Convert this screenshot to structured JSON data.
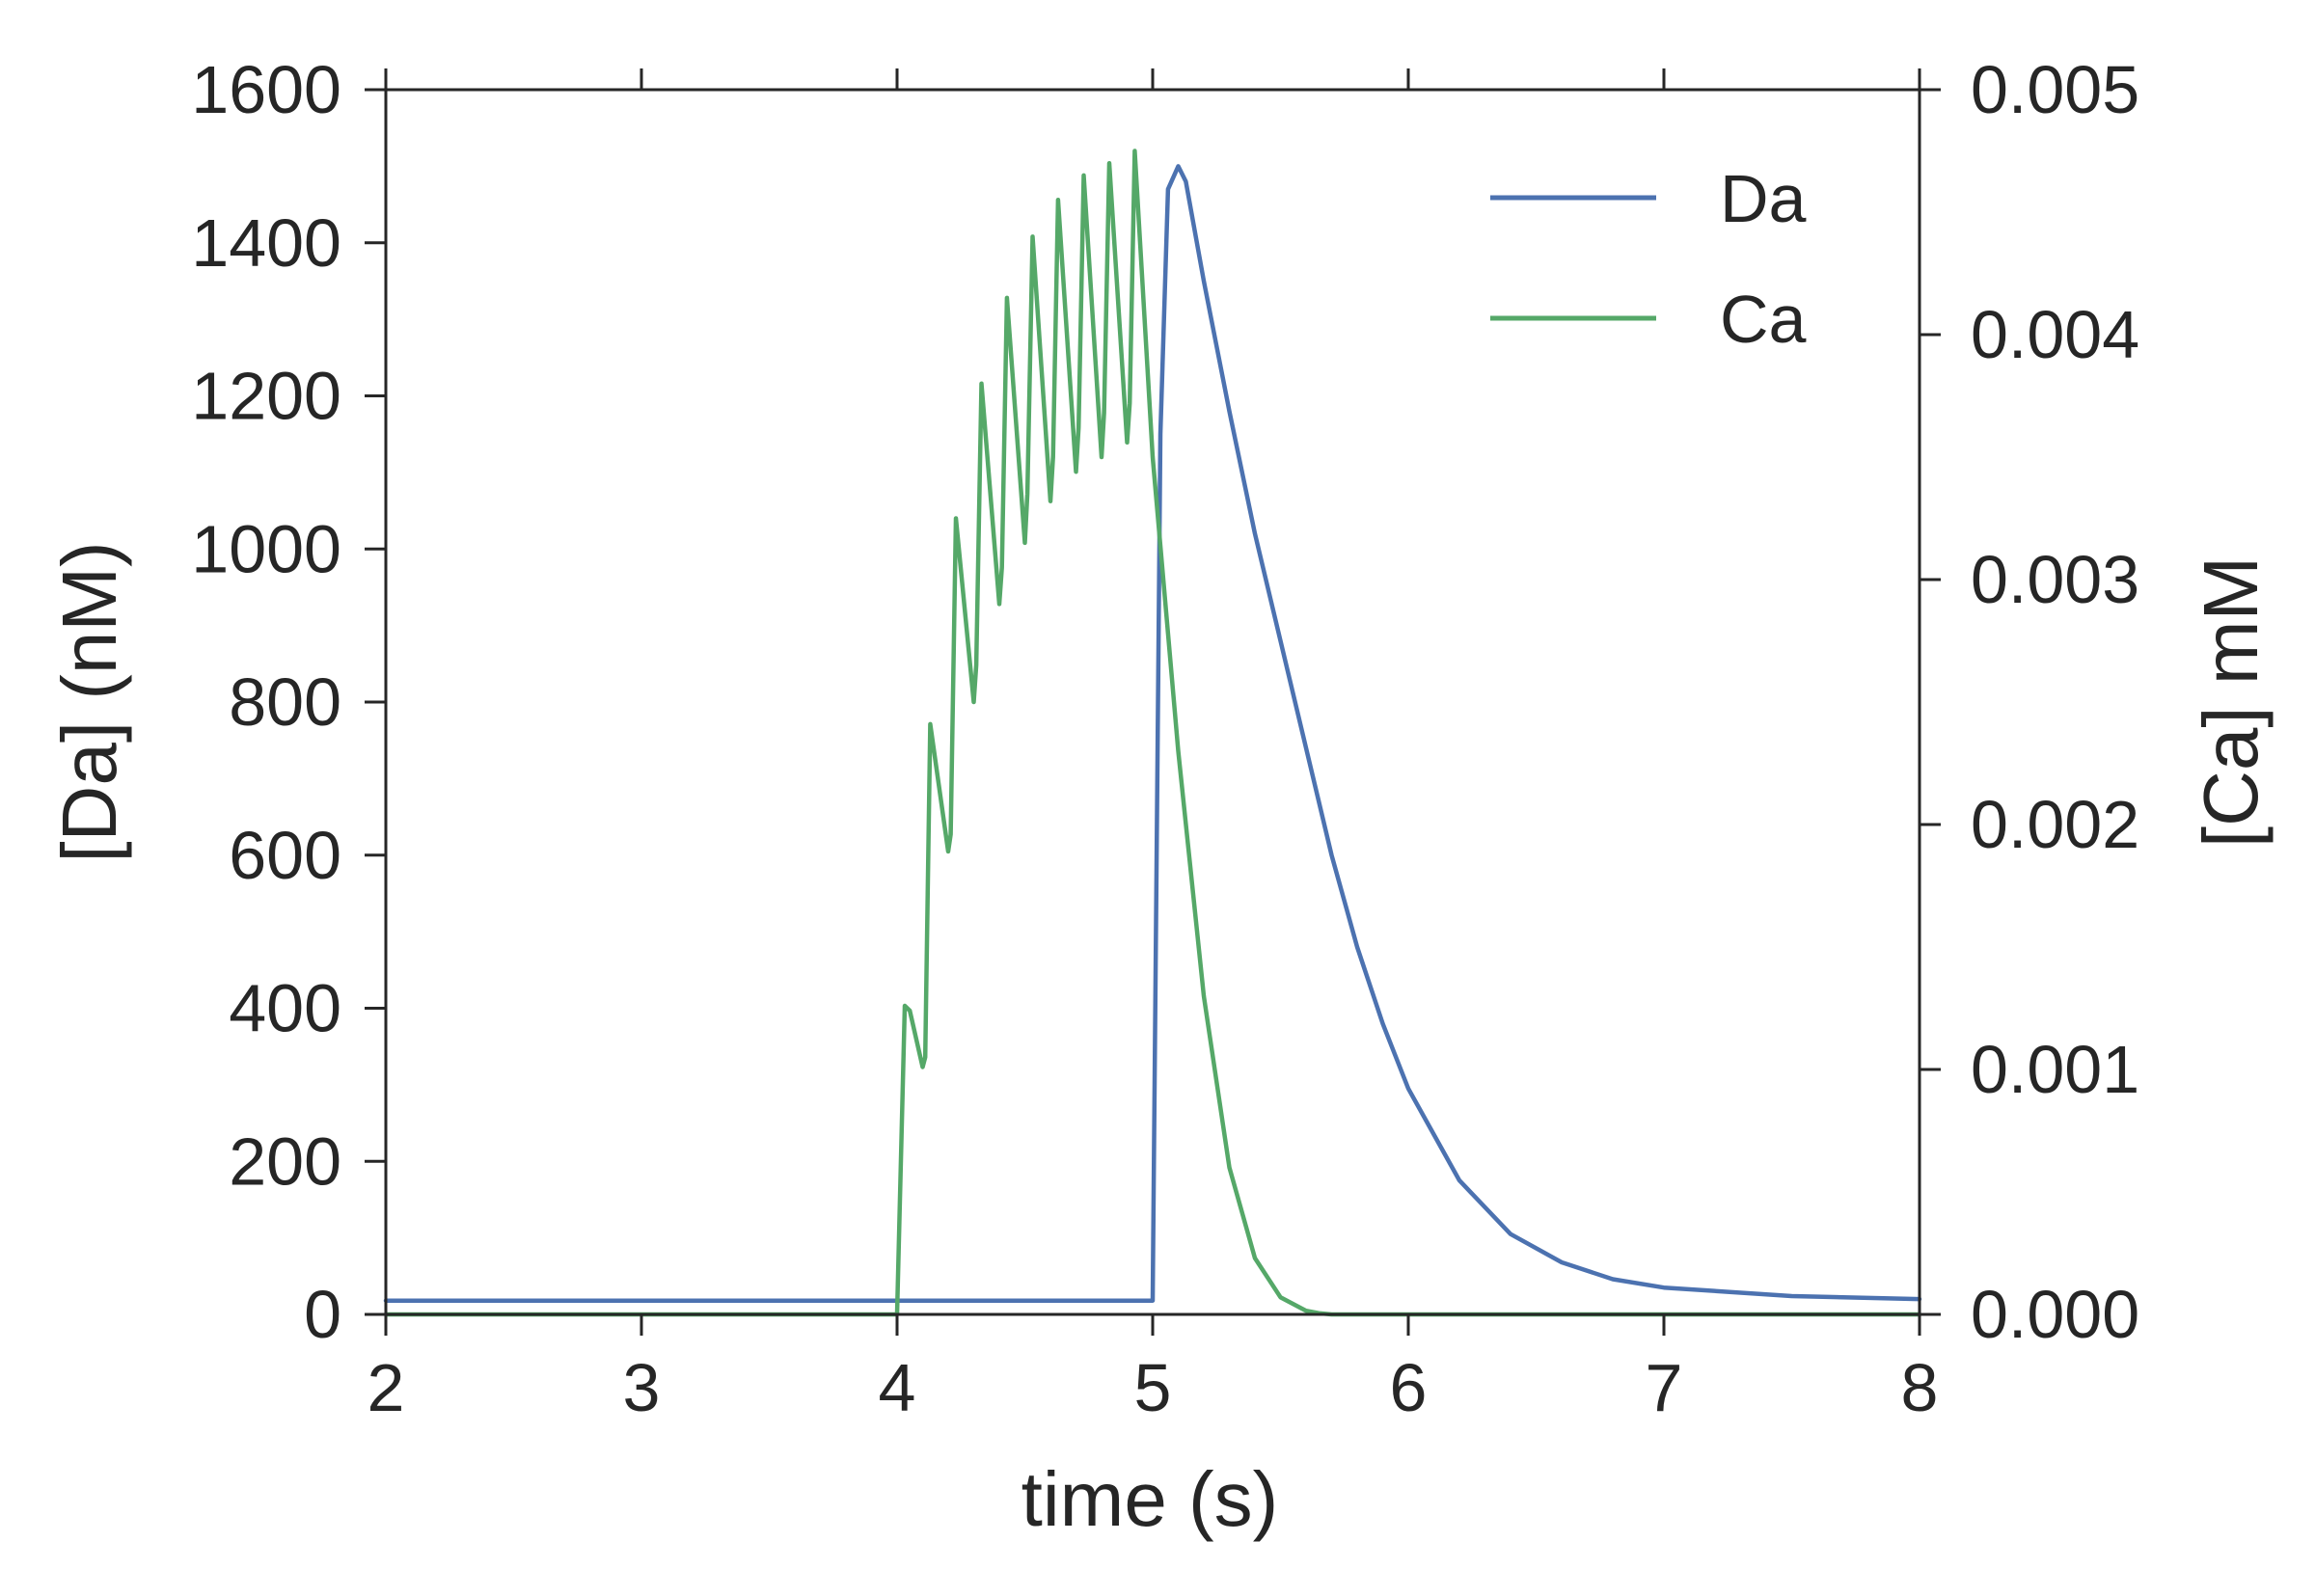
{
  "chart_data": {
    "type": "line",
    "xlabel": "time (s)",
    "ylabel_left": "[Da] (nM)",
    "ylabel_right": "[Ca] mM",
    "xlim": [
      2,
      8
    ],
    "ylim_left": [
      0,
      1600
    ],
    "ylim_right": [
      0,
      0.005
    ],
    "x_ticks": [
      2,
      3,
      4,
      5,
      6,
      7,
      8
    ],
    "y_ticks_left": [
      0,
      200,
      400,
      600,
      800,
      1000,
      1200,
      1400,
      1600
    ],
    "y_ticks_right": [
      "0.000",
      "0.001",
      "0.002",
      "0.003",
      "0.004",
      "0.005"
    ],
    "grid": false,
    "legend": {
      "position": "top-right",
      "entries": [
        "Da",
        "Ca"
      ]
    },
    "series": [
      {
        "name": "Da",
        "axis": "left",
        "color": "#4c72b0",
        "x": [
          2.0,
          4.99,
          5.0,
          5.03,
          5.06,
          5.1,
          5.13,
          5.2,
          5.3,
          5.4,
          5.5,
          5.6,
          5.7,
          5.8,
          5.9,
          6.0,
          6.2,
          6.4,
          6.6,
          6.8,
          7.0,
          7.5,
          8.0
        ],
        "y": [
          18,
          18,
          18,
          1150,
          1470,
          1500,
          1480,
          1350,
          1180,
          1020,
          880,
          740,
          600,
          480,
          380,
          295,
          175,
          105,
          68,
          46,
          35,
          24,
          20
        ]
      },
      {
        "name": "Ca",
        "axis": "right",
        "color": "#55a868",
        "x": [
          2.0,
          3.99,
          4.0,
          4.03,
          4.05,
          4.1,
          4.11,
          4.13,
          4.2,
          4.21,
          4.23,
          4.3,
          4.31,
          4.33,
          4.4,
          4.41,
          4.43,
          4.5,
          4.51,
          4.53,
          4.6,
          4.61,
          4.63,
          4.7,
          4.71,
          4.73,
          4.8,
          4.81,
          4.83,
          4.9,
          4.91,
          4.93,
          5.0,
          5.1,
          5.2,
          5.3,
          5.4,
          5.5,
          5.6,
          5.65,
          5.7,
          6.0,
          8.0
        ],
        "y": [
          0.0,
          0.0,
          0.0,
          0.00126,
          0.00124,
          0.00101,
          0.00105,
          0.00241,
          0.00189,
          0.00196,
          0.00325,
          0.0025,
          0.00265,
          0.0038,
          0.0029,
          0.00305,
          0.00415,
          0.00315,
          0.00335,
          0.0044,
          0.00332,
          0.0035,
          0.00455,
          0.00344,
          0.00362,
          0.00465,
          0.0035,
          0.00368,
          0.0047,
          0.00356,
          0.00372,
          0.00475,
          0.0035,
          0.0023,
          0.0013,
          0.0006,
          0.00023,
          7e-05,
          1.5e-05,
          5e-06,
          0.0,
          0.0,
          0.0
        ]
      }
    ]
  }
}
